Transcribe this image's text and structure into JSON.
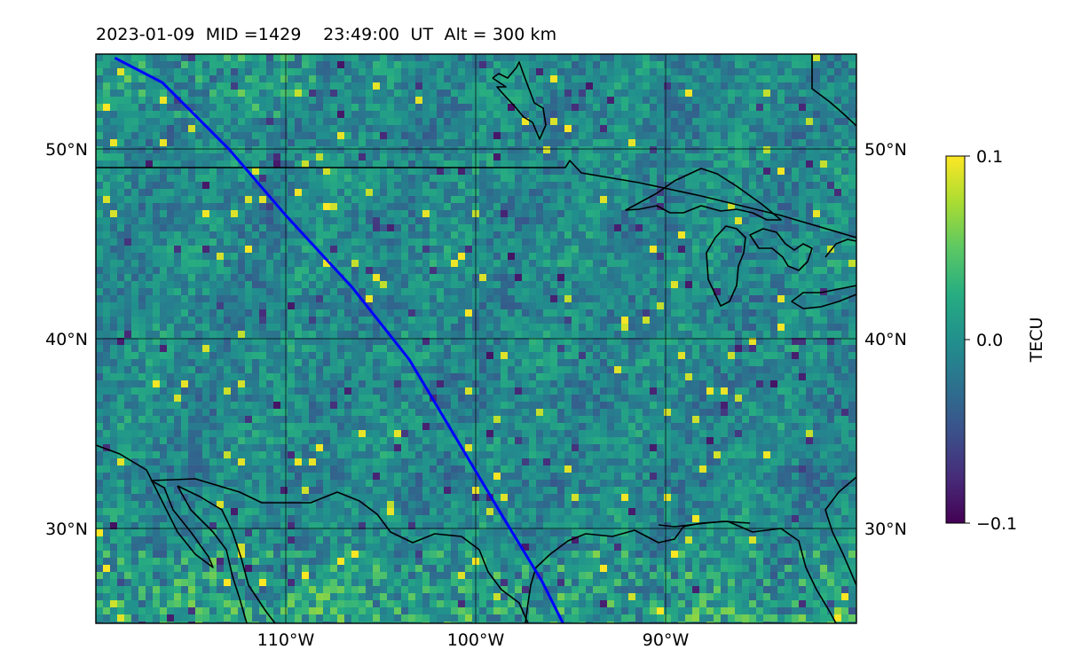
{
  "title": "2023-01-09  MID =1429    23:49:00  UT  Alt = 300 km",
  "map": {
    "lat_labels_left": [
      "50°N",
      "40°N",
      "30°N"
    ],
    "lat_labels_right": [
      "50°N",
      "40°N",
      "30°N"
    ],
    "lon_labels": [
      "110°W",
      "100°W",
      "90°W"
    ]
  },
  "colorbar": {
    "label": "TECU",
    "ticks": [
      "0.1",
      "0.0",
      "−0.1"
    ],
    "range": [
      -0.1,
      0.1
    ],
    "colormap": "viridis"
  },
  "track": {
    "color": "#0000ff",
    "description_points": [
      [
        -119,
        54.8
      ],
      [
        -116.5,
        53.5
      ],
      [
        -113,
        50
      ],
      [
        -110,
        46.5
      ],
      [
        -106.5,
        42.7
      ],
      [
        -103.5,
        38.9
      ],
      [
        -101,
        34.7
      ],
      [
        -98.5,
        30.5
      ],
      [
        -96.5,
        27.2
      ],
      [
        -95.4,
        25
      ]
    ]
  },
  "colors": {
    "background": "#ffffff",
    "coastline": "#000000",
    "grid": "#000000"
  }
}
